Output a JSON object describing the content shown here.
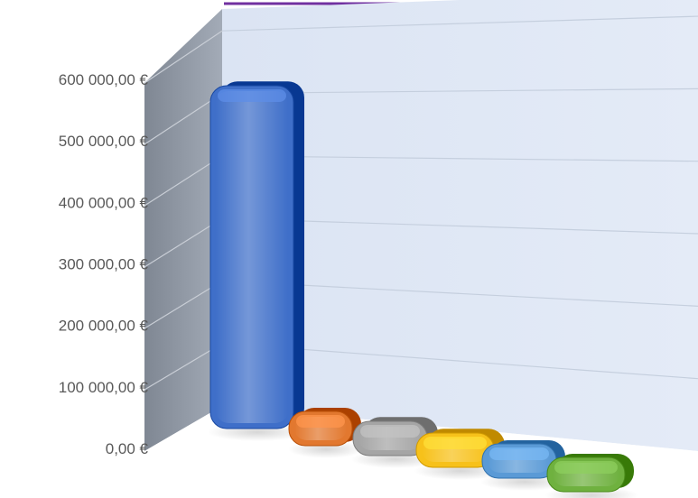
{
  "chart_data": {
    "type": "bar",
    "style": "3d-rounded-columns",
    "title": "",
    "xlabel": "",
    "ylabel": "",
    "ylim": [
      0,
      600000
    ],
    "y_ticks": [
      "0,00 €",
      "100 000,00 €",
      "200 000,00 €",
      "300 000,00 €",
      "400 000,00 €",
      "500 000,00 €",
      "600 000,00 €"
    ],
    "y_tick_values": [
      0,
      100000,
      200000,
      300000,
      400000,
      500000,
      600000
    ],
    "grid": true,
    "legend": "none",
    "values": [
      555000,
      1000,
      12000,
      15000,
      2000,
      5000
    ],
    "colors": [
      "#3f6fc9",
      "#e2782f",
      "#a5a5a5",
      "#f7c11a",
      "#5a9ad6",
      "#6fb13f"
    ],
    "accent": "#7030a0"
  }
}
